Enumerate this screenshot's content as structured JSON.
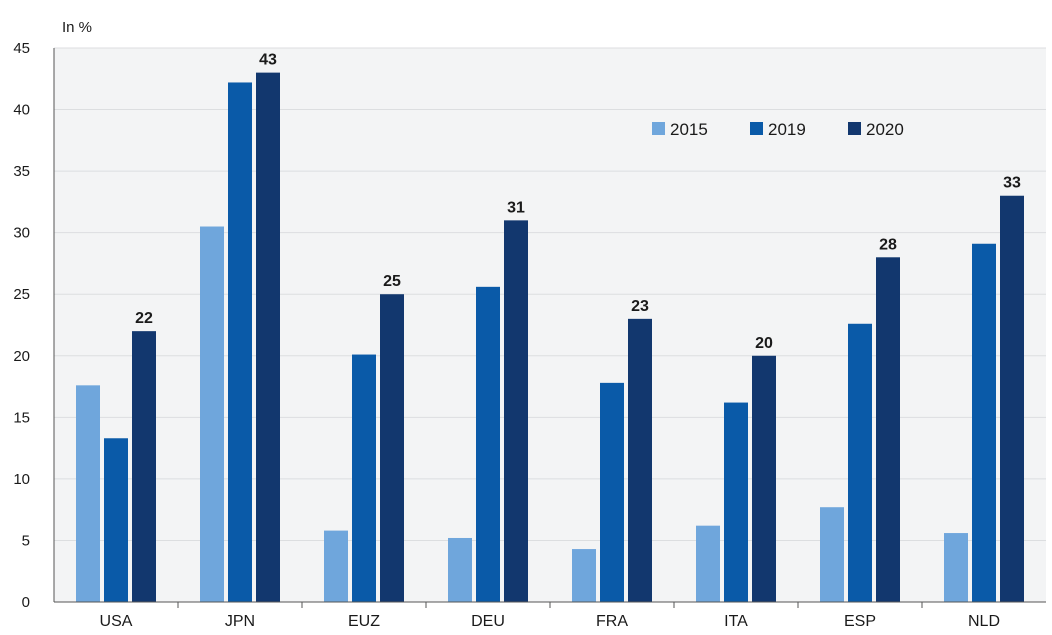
{
  "chart_data": {
    "type": "bar",
    "unit_label": "In %",
    "categories": [
      "USA",
      "JPN",
      "EUZ",
      "DEU",
      "FRA",
      "ITA",
      "ESP",
      "NLD"
    ],
    "series": [
      {
        "name": "2015",
        "color": "#6fa6dc",
        "values": [
          17.6,
          30.5,
          5.8,
          5.2,
          4.3,
          6.2,
          7.7,
          5.6
        ]
      },
      {
        "name": "2019",
        "color": "#0a5aa8",
        "values": [
          13.3,
          42.2,
          20.1,
          25.6,
          17.8,
          16.2,
          22.6,
          29.1
        ]
      },
      {
        "name": "2020",
        "color": "#12376e",
        "values": [
          22,
          43,
          25,
          31,
          23,
          20,
          28,
          33
        ]
      }
    ],
    "data_labels": [
      "22",
      "43",
      "25",
      "31",
      "23",
      "20",
      "28",
      "33"
    ],
    "ylim": [
      0,
      45
    ],
    "yticks": [
      "0",
      "5",
      "10",
      "15",
      "20",
      "25",
      "30",
      "35",
      "40",
      "45"
    ],
    "grid": true,
    "legend_position": "top-right"
  }
}
